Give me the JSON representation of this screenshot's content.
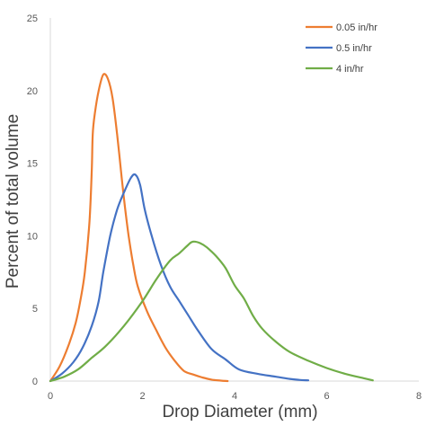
{
  "chart_data": {
    "type": "line",
    "title": "",
    "xlabel": "Drop Diameter (mm)",
    "ylabel": "Percent of total volume",
    "xlim": [
      0,
      8
    ],
    "ylim": [
      0,
      25
    ],
    "x_ticks": [
      "0",
      "2",
      "4",
      "6",
      "8"
    ],
    "y_ticks": [
      "0",
      "5",
      "10",
      "15",
      "20",
      "25"
    ],
    "grid": false,
    "legend": "top-right",
    "series": [
      {
        "name": "0.05 in/hr",
        "color": "#ED7D31",
        "points": [
          [
            0,
            0
          ],
          [
            0.2,
            1.0
          ],
          [
            0.4,
            2.5
          ],
          [
            0.55,
            4.0
          ],
          [
            0.65,
            5.5
          ],
          [
            0.75,
            7.5
          ],
          [
            0.85,
            11.0
          ],
          [
            0.9,
            14.5
          ],
          [
            0.92,
            17.0
          ],
          [
            0.97,
            18.5
          ],
          [
            1.05,
            20.0
          ],
          [
            1.15,
            21.1
          ],
          [
            1.25,
            20.8
          ],
          [
            1.35,
            19.5
          ],
          [
            1.45,
            17.0
          ],
          [
            1.55,
            14.0
          ],
          [
            1.62,
            12.0
          ],
          [
            1.7,
            10.0
          ],
          [
            1.8,
            8.0
          ],
          [
            1.9,
            6.5
          ],
          [
            2.1,
            4.8
          ],
          [
            2.3,
            3.5
          ],
          [
            2.5,
            2.3
          ],
          [
            2.7,
            1.4
          ],
          [
            2.9,
            0.7
          ],
          [
            3.1,
            0.45
          ],
          [
            3.3,
            0.25
          ],
          [
            3.5,
            0.1
          ],
          [
            3.7,
            0.03
          ],
          [
            3.85,
            0
          ]
        ]
      },
      {
        "name": "0.5 in/hr",
        "color": "#4472C4",
        "points": [
          [
            0,
            0
          ],
          [
            0.25,
            0.5
          ],
          [
            0.5,
            1.3
          ],
          [
            0.7,
            2.3
          ],
          [
            0.9,
            3.8
          ],
          [
            1.05,
            5.5
          ],
          [
            1.15,
            7.5
          ],
          [
            1.3,
            10.0
          ],
          [
            1.45,
            11.8
          ],
          [
            1.6,
            13.0
          ],
          [
            1.75,
            14.0
          ],
          [
            1.85,
            14.2
          ],
          [
            1.95,
            13.5
          ],
          [
            2.05,
            11.8
          ],
          [
            2.2,
            10.0
          ],
          [
            2.4,
            8.0
          ],
          [
            2.6,
            6.5
          ],
          [
            2.8,
            5.5
          ],
          [
            3.0,
            4.5
          ],
          [
            3.2,
            3.5
          ],
          [
            3.5,
            2.2
          ],
          [
            3.8,
            1.5
          ],
          [
            4.1,
            0.8
          ],
          [
            4.5,
            0.5
          ],
          [
            4.9,
            0.3
          ],
          [
            5.2,
            0.15
          ],
          [
            5.4,
            0.08
          ],
          [
            5.6,
            0.05
          ]
        ]
      },
      {
        "name": "4 in/hr",
        "color": "#70AD47",
        "points": [
          [
            0,
            0
          ],
          [
            0.3,
            0.3
          ],
          [
            0.6,
            0.8
          ],
          [
            0.9,
            1.6
          ],
          [
            1.2,
            2.4
          ],
          [
            1.6,
            3.8
          ],
          [
            2.0,
            5.5
          ],
          [
            2.3,
            7.0
          ],
          [
            2.6,
            8.3
          ],
          [
            2.8,
            8.8
          ],
          [
            3.0,
            9.4
          ],
          [
            3.1,
            9.6
          ],
          [
            3.25,
            9.5
          ],
          [
            3.4,
            9.2
          ],
          [
            3.6,
            8.6
          ],
          [
            3.8,
            7.8
          ],
          [
            4.0,
            6.6
          ],
          [
            4.2,
            5.7
          ],
          [
            4.4,
            4.5
          ],
          [
            4.6,
            3.6
          ],
          [
            4.9,
            2.7
          ],
          [
            5.2,
            2.0
          ],
          [
            5.6,
            1.4
          ],
          [
            6.0,
            0.9
          ],
          [
            6.4,
            0.5
          ],
          [
            6.8,
            0.2
          ],
          [
            7.0,
            0.05
          ]
        ]
      }
    ]
  }
}
